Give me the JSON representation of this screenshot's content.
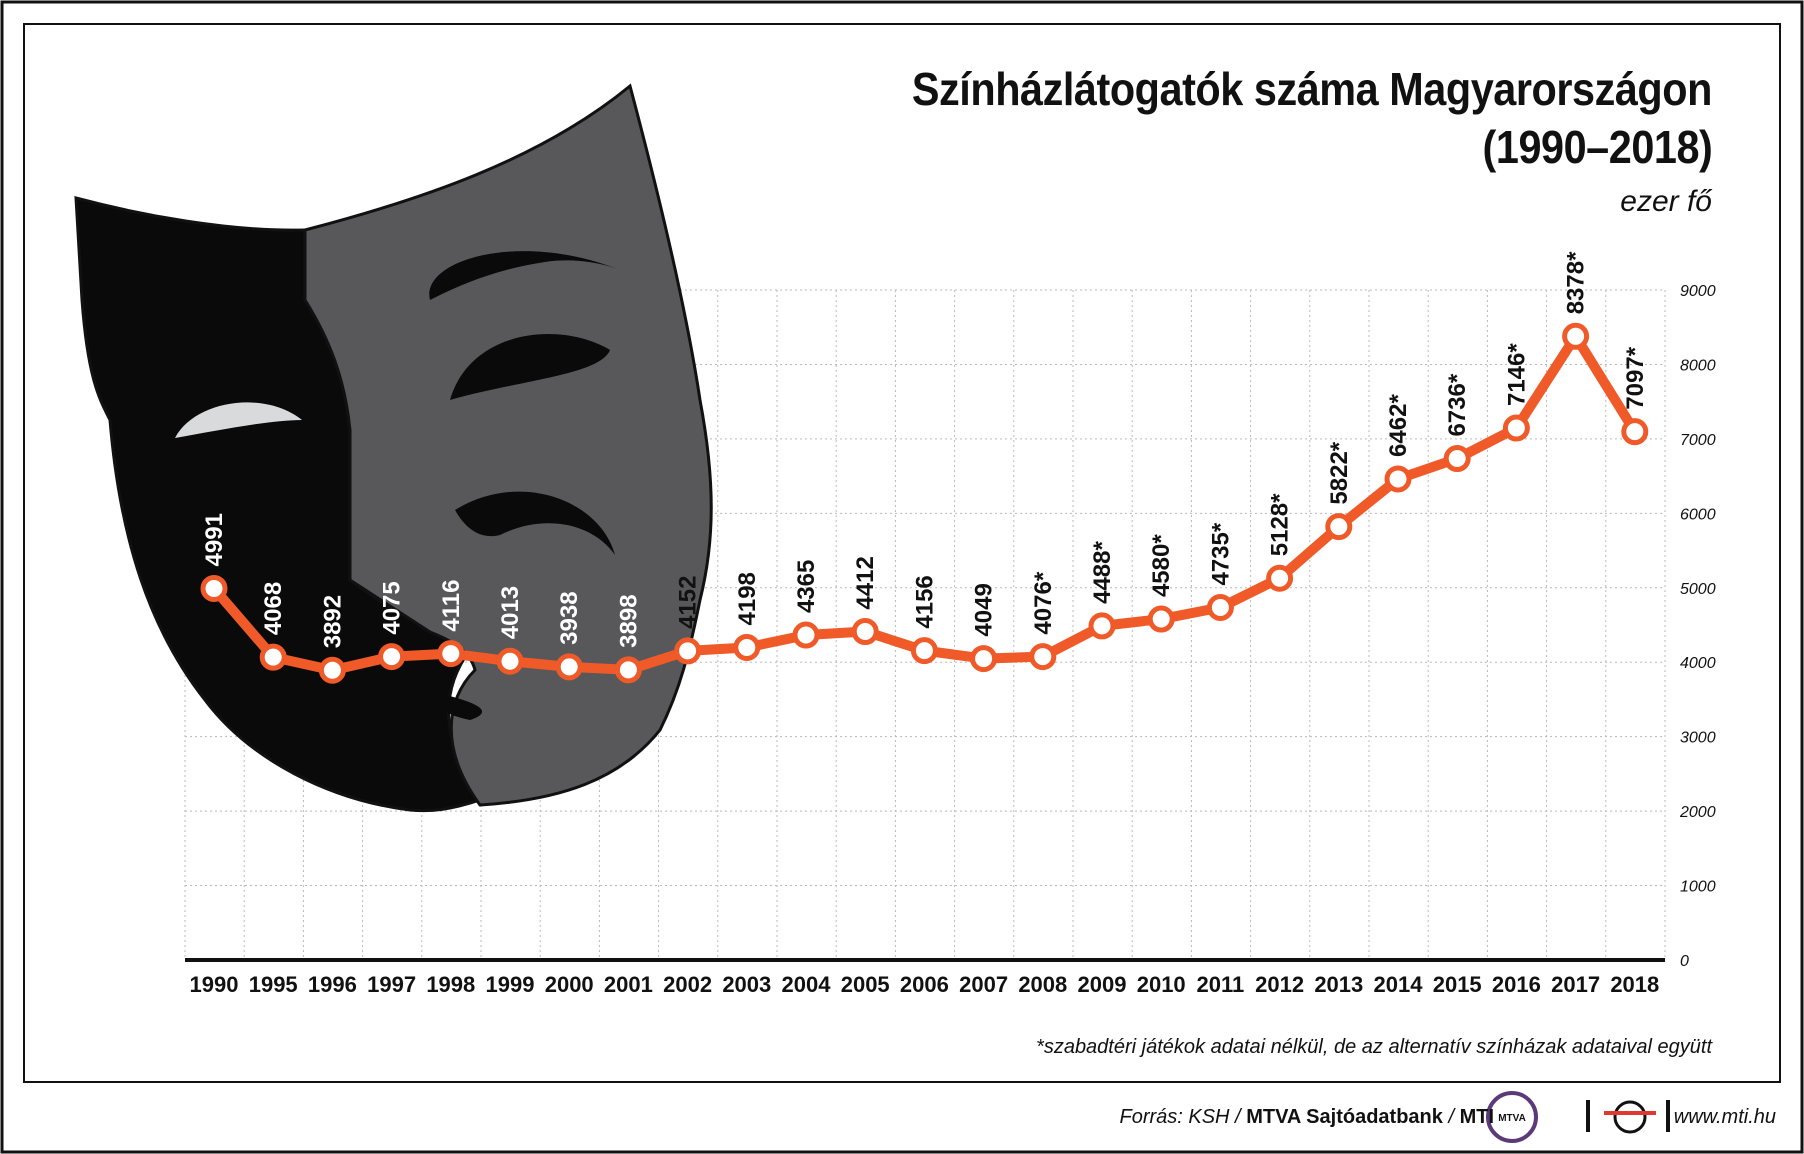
{
  "title_line1": "Színházlátogatók száma Magyarországon",
  "title_line2": "(1990–2018)",
  "unit": "ezer fő",
  "footnote": "*szabadtéri játékok adatai nélkül, de az alternatív színházak adataival együtt",
  "source_prefix": "Forrás: KSH / ",
  "source_bold": "MTVA Sajtóadatbank",
  "source_sep": " / ",
  "source_mti": "MTI",
  "logo_text": "MTVA",
  "website": "www.mti.hu",
  "colors": {
    "line": "#ef5a28",
    "mask_dark": "#0a0a0a",
    "mask_gray": "#58585a",
    "eye_light": "#d9dadb"
  },
  "chart_data": {
    "type": "line",
    "categories": [
      "1990",
      "1995",
      "1996",
      "1997",
      "1998",
      "1999",
      "2000",
      "2001",
      "2002",
      "2003",
      "2004",
      "2005",
      "2006",
      "2007",
      "2008",
      "2009",
      "2010",
      "2011",
      "2012",
      "2013",
      "2014",
      "2015",
      "2016",
      "2017",
      "2018"
    ],
    "values": [
      4991,
      4068,
      3892,
      4075,
      4116,
      4013,
      3938,
      3898,
      4152,
      4198,
      4365,
      4412,
      4156,
      4049,
      4076,
      4488,
      4580,
      4735,
      5128,
      5822,
      6462,
      6736,
      7146,
      8378,
      7097
    ],
    "data_labels": [
      "4991",
      "4068",
      "3892",
      "4075",
      "4116",
      "4013",
      "3938",
      "3898",
      "4152",
      "4198",
      "4365",
      "4412",
      "4156",
      "4049",
      "4076*",
      "4488*",
      "4580*",
      "4735*",
      "5128*",
      "5822*",
      "6462*",
      "6736*",
      "7146*",
      "8378*",
      "7097*"
    ],
    "yticks": [
      "0",
      "1000",
      "2000",
      "3000",
      "4000",
      "5000",
      "6000",
      "7000",
      "8000",
      "9000"
    ],
    "ylim": [
      0,
      9000
    ],
    "grid": true,
    "y_axis_side": "right"
  }
}
